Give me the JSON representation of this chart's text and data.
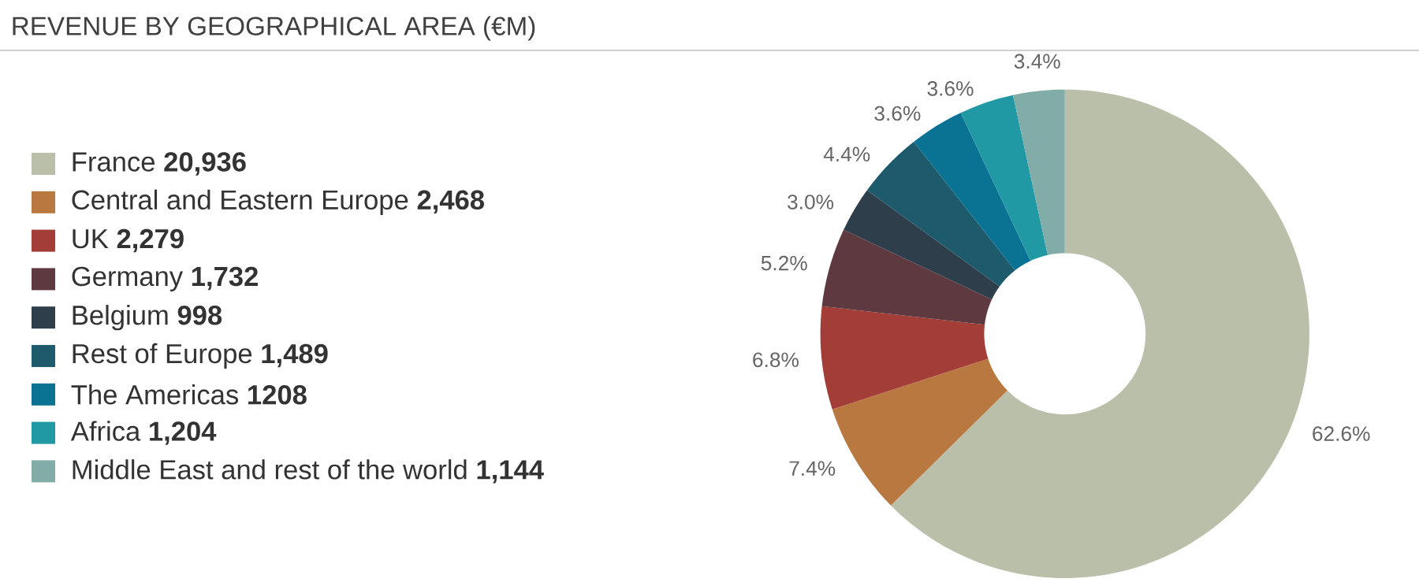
{
  "chart_data": {
    "type": "donut",
    "title": "REVENUE BY GEOGRAPHICAL AREA (€M)",
    "categories": [
      "France **20,936**",
      "Central and Eastern Europe **2,468**",
      "UK **2,279**",
      "Germany **1,732**",
      "Belgium **998**",
      "Rest of Europe **1,489**",
      "The Americas **1208**",
      "Africa **1,204**",
      "Middle East and rest of the world **1,144**"
    ],
    "values": [
      62.6,
      7.4,
      6.8,
      5.2,
      3.0,
      4.4,
      3.6,
      3.6,
      3.4
    ],
    "value_labels": [
      "62.6%",
      "7.4%",
      "6.8%",
      "5.2%",
      "3.0%",
      "4.4%",
      "3.6%",
      "3.6%",
      "3.4%"
    ],
    "colors": [
      "#b9bfa8",
      "#b87840",
      "#a23d38",
      "#5e3a40",
      "#2e3e4a",
      "#1c5a6c",
      "#0a7393",
      "#2199a4",
      "#82aca8"
    ],
    "legend": "left"
  }
}
